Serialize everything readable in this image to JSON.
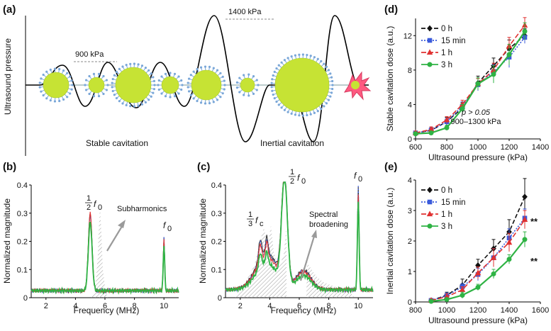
{
  "panels": {
    "a": {
      "letter": "(a)",
      "ylabel": "Ultrasound pressure",
      "label_900": "900 kPa",
      "label_1400": "1400 kPa",
      "caption_stable": "Stable cavitation",
      "caption_inertial": "Inertial cavitation",
      "colors": {
        "bubble_core": "#c6e334",
        "lipid_shell": "#7aa7d8",
        "burst": "#ff5a80"
      }
    },
    "b": {
      "letter": "(b)",
      "ylabel": "Normalized magnitude",
      "xlabel": "Frequency (MHz)",
      "note_subharmonics": "Subharmonics",
      "peak_half_num": "1",
      "peak_half_den": "2",
      "peak_half_sym": "f",
      "peak_half_sub": "0",
      "peak_f0_sym": "f",
      "peak_f0_sub": "0"
    },
    "c": {
      "letter": "(c)",
      "ylabel": "Normalized magnitude",
      "xlabel": "Frequency (MHz)",
      "note_spectral_1": "Spectral",
      "note_spectral_2": "broadening",
      "peak_third_num": "1",
      "peak_third_den": "3",
      "peak_third_sym": "f",
      "peak_third_sub": "c",
      "peak_half_num": "1",
      "peak_half_den": "2",
      "peak_half_sym": "f",
      "peak_half_sub": "0",
      "peak_f0_sym": "f",
      "peak_f0_sub": "0"
    },
    "d": {
      "letter": "(d)",
      "p_line1": "p > 0.05",
      "p_line2": "900–1300 kPa"
    },
    "e": {
      "letter": "(e)",
      "stars_1h": "**",
      "stars_3h": "**"
    }
  },
  "chart_data": [
    {
      "panel": "b",
      "type": "line",
      "xlabel": "Frequency (MHz)",
      "ylabel": "Normalized magnitude",
      "xlim": [
        1,
        11
      ],
      "ylim": [
        0,
        0.4
      ],
      "xticks": [
        "2",
        "4",
        "6",
        "8",
        "10"
      ],
      "yticks": [
        "0",
        "0.1",
        "0.2",
        "0.3",
        "0.4"
      ],
      "peaks": [
        {
          "x": 5.0,
          "y": 0.29
        },
        {
          "x": 10.0,
          "y": 0.215
        }
      ],
      "series_colors": [
        "#333333",
        "#3b5bdb",
        "#e03131",
        "#2fb344"
      ]
    },
    {
      "panel": "c",
      "type": "line",
      "xlabel": "Frequency (MHz)",
      "ylabel": "Normalized magnitude",
      "xlim": [
        1,
        11
      ],
      "ylim": [
        0,
        0.4
      ],
      "xticks": [
        "2",
        "4",
        "6",
        "8",
        "10"
      ],
      "yticks": [
        "0",
        "0.1",
        "0.2",
        "0.3",
        "0.4"
      ],
      "peaks": [
        {
          "x": 5.0,
          "y": 0.4
        },
        {
          "x": 10.0,
          "y": 0.39
        }
      ],
      "series_colors": [
        "#333333",
        "#3b5bdb",
        "#e03131",
        "#2fb344"
      ]
    },
    {
      "panel": "d",
      "type": "line",
      "xlabel": "Ultrasound pressure (kPa)",
      "ylabel": "Stable cavitation dose (a.u.)",
      "xlim": [
        600,
        1400
      ],
      "ylim": [
        0,
        14
      ],
      "xticks": [
        600,
        800,
        1000,
        1200,
        1400
      ],
      "yticks": [
        0,
        4,
        8,
        12
      ],
      "x": [
        600,
        700,
        800,
        900,
        1000,
        1100,
        1200,
        1300
      ],
      "legend_position": "top-left",
      "series": [
        {
          "name": "0 h",
          "color": "#111111",
          "dash": "6,3",
          "marker": "diamond",
          "values": [
            0.7,
            1.0,
            2.0,
            3.6,
            6.5,
            8.5,
            10.5,
            12.0
          ],
          "err": [
            0.2,
            0.3,
            0.5,
            0.6,
            0.8,
            0.9,
            1.0,
            0.8
          ]
        },
        {
          "name": "15 min",
          "color": "#3b5bdb",
          "dash": "2,2",
          "marker": "square",
          "values": [
            0.7,
            1.0,
            2.0,
            3.8,
            6.3,
            7.8,
            9.5,
            11.8
          ],
          "err": [
            0.2,
            0.3,
            0.4,
            0.5,
            0.7,
            0.8,
            1.2,
            0.7
          ]
        },
        {
          "name": "1 h",
          "color": "#e03131",
          "dash": "7,3",
          "marker": "triangle",
          "values": [
            0.7,
            1.1,
            2.2,
            4.0,
            6.4,
            8.0,
            10.8,
            13.2
          ],
          "err": [
            0.2,
            0.3,
            0.4,
            0.5,
            0.6,
            0.8,
            1.0,
            0.9
          ]
        },
        {
          "name": "3 h",
          "color": "#2fb344",
          "dash": "",
          "marker": "circle",
          "values": [
            0.6,
            0.7,
            1.3,
            3.5,
            6.4,
            7.5,
            9.8,
            12.5
          ],
          "err": [
            0.2,
            0.2,
            0.3,
            0.5,
            0.7,
            1.0,
            1.2,
            1.0
          ]
        }
      ]
    },
    {
      "panel": "e",
      "type": "line",
      "xlabel": "Ultrasound pressure (kPa)",
      "ylabel": "Inertial cavitation dose (a.u.)",
      "xlim": [
        800,
        1600
      ],
      "ylim": [
        0,
        4
      ],
      "xticks": [
        800,
        1000,
        1200,
        1400,
        1600
      ],
      "yticks": [
        0,
        1,
        2,
        3,
        4
      ],
      "x": [
        900,
        1000,
        1100,
        1200,
        1300,
        1400,
        1500
      ],
      "legend_position": "top-left",
      "series": [
        {
          "name": "0 h",
          "color": "#111111",
          "dash": "6,3",
          "marker": "diamond",
          "values": [
            0.05,
            0.22,
            0.55,
            1.2,
            1.75,
            2.3,
            3.45
          ],
          "err": [
            0.05,
            0.1,
            0.2,
            0.2,
            0.3,
            0.4,
            0.6
          ]
        },
        {
          "name": "15 min",
          "color": "#3b5bdb",
          "dash": "2,2",
          "marker": "square",
          "values": [
            0.05,
            0.2,
            0.5,
            0.9,
            1.45,
            2.1,
            2.75
          ],
          "err": [
            0.05,
            0.1,
            0.1,
            0.2,
            0.3,
            0.3,
            0.3
          ]
        },
        {
          "name": "1 h",
          "color": "#e03131",
          "dash": "7,3",
          "marker": "triangle",
          "values": [
            0.05,
            0.17,
            0.4,
            0.95,
            1.45,
            1.95,
            2.7
          ],
          "err": [
            0.05,
            0.1,
            0.1,
            0.2,
            0.3,
            0.3,
            0.3
          ]
        },
        {
          "name": "3 h",
          "color": "#2fb344",
          "dash": "",
          "marker": "circle",
          "values": [
            0.02,
            0.08,
            0.22,
            0.48,
            0.92,
            1.4,
            2.05
          ],
          "err": [
            0.03,
            0.05,
            0.1,
            0.1,
            0.15,
            0.15,
            0.25
          ]
        }
      ]
    }
  ]
}
